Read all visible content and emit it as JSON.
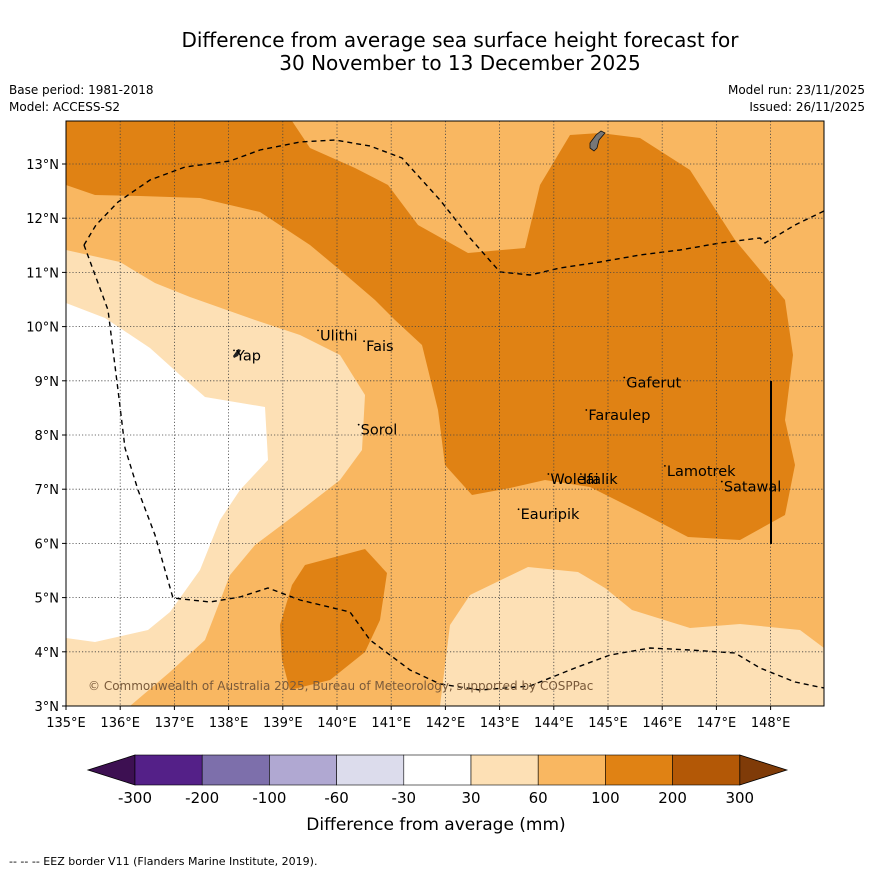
{
  "title": {
    "line1": "Difference from average sea surface height forecast for",
    "line2": "30 November to 13 December 2025"
  },
  "meta": {
    "base_period": "Base period: 1981-2018",
    "model": "Model: ACCESS-S2",
    "model_run": "Model run: 23/11/2025",
    "issued": "Issued: 26/11/2025"
  },
  "map": {
    "lon_range": [
      135,
      149
    ],
    "lat_range": [
      3,
      13.8
    ],
    "lon_ticks": [
      "135°E",
      "136°E",
      "137°E",
      "138°E",
      "139°E",
      "140°E",
      "141°E",
      "142°E",
      "143°E",
      "144°E",
      "145°E",
      "146°E",
      "147°E",
      "148°E"
    ],
    "lat_ticks": [
      "3°N",
      "4°N",
      "5°N",
      "6°N",
      "7°N",
      "8°N",
      "9°N",
      "10°N",
      "11°N",
      "12°N",
      "13°N"
    ],
    "places": [
      {
        "name": "Yap",
        "lon": 138.1,
        "lat": 9.45
      },
      {
        "name": "Ulithi",
        "lon": 139.65,
        "lat": 9.82
      },
      {
        "name": "Fais",
        "lon": 140.5,
        "lat": 9.62
      },
      {
        "name": "Sorol",
        "lon": 140.4,
        "lat": 8.08
      },
      {
        "name": "Gaferut",
        "lon": 145.3,
        "lat": 8.95
      },
      {
        "name": "Faraulep",
        "lon": 144.6,
        "lat": 8.35
      },
      {
        "name": "Woleai",
        "lon": 143.9,
        "lat": 7.17
      },
      {
        "name": "Ifalik",
        "lon": 144.5,
        "lat": 7.17
      },
      {
        "name": "Lamotrek",
        "lon": 146.05,
        "lat": 7.32
      },
      {
        "name": "Satawal",
        "lon": 147.1,
        "lat": 7.03
      },
      {
        "name": "Eauripik",
        "lon": 143.35,
        "lat": 6.52
      }
    ],
    "copyright": "© Commonwealth of Australia 2025, Bureau of Meteorology, supported by COSPPac"
  },
  "colorbar": {
    "colors": [
      "#3d1052",
      "#542088",
      "#7d6fab",
      "#b0a8d2",
      "#dcdcec",
      "#ffffff",
      "#fde0b5",
      "#f9b761",
      "#e08214",
      "#b35806",
      "#7f3b08"
    ],
    "labels": [
      "-300",
      "-200",
      "-100",
      "-60",
      "-30",
      "30",
      "60",
      "100",
      "200",
      "300"
    ],
    "title": "Difference from average (mm)"
  },
  "legend_note": "--  --  -- EEZ border V11 (Flanders Marine Institute, 2019)."
}
